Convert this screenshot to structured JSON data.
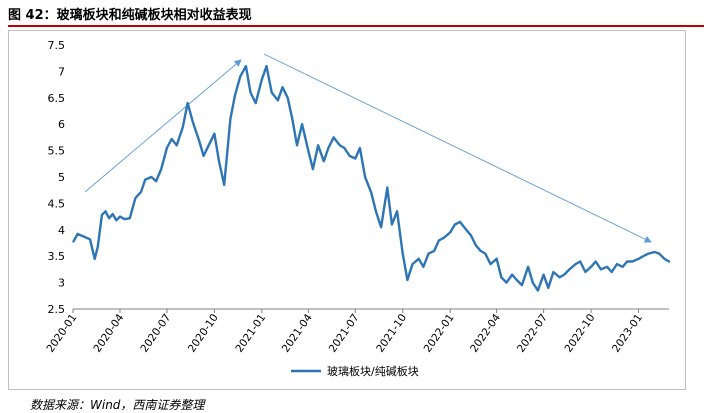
{
  "figure": {
    "title": "图 42：玻璃板块和纯碱板块相对收益表现",
    "source": "数据来源：Wind，西南证券整理"
  },
  "chart_data": {
    "type": "line",
    "title": "",
    "xlabel": "",
    "ylabel": "",
    "ylim": [
      2.5,
      7.5
    ],
    "yticks": [
      "2.5",
      "3",
      "3.5",
      "4",
      "4.5",
      "5",
      "5.5",
      "6",
      "6.5",
      "7",
      "7.5"
    ],
    "xticks": [
      "2020-01",
      "2020-04",
      "2020-07",
      "2020-10",
      "2021-01",
      "2021-04",
      "2021-07",
      "2021-10",
      "2022-01",
      "2022-04",
      "2022-07",
      "2022-10",
      "2023-01"
    ],
    "x_range": [
      "2020-01",
      "2023-03"
    ],
    "grid": false,
    "legend": "bottom",
    "color": "#2e75b6",
    "series": [
      {
        "name": "玻璃板块/纯碱板块",
        "x": [
          "2020-01-02",
          "2020-01-10",
          "2020-01-20",
          "2020-02-03",
          "2020-02-12",
          "2020-02-18",
          "2020-02-26",
          "2020-03-04",
          "2020-03-11",
          "2020-03-18",
          "2020-03-25",
          "2020-04-01",
          "2020-04-10",
          "2020-04-20",
          "2020-05-01",
          "2020-05-12",
          "2020-05-20",
          "2020-06-01",
          "2020-06-10",
          "2020-06-20",
          "2020-07-01",
          "2020-07-10",
          "2020-07-20",
          "2020-08-01",
          "2020-08-10",
          "2020-08-20",
          "2020-09-01",
          "2020-09-10",
          "2020-09-20",
          "2020-10-01",
          "2020-10-10",
          "2020-10-20",
          "2020-11-01",
          "2020-11-10",
          "2020-11-20",
          "2020-12-01",
          "2020-12-10",
          "2020-12-20",
          "2021-01-01",
          "2021-01-10",
          "2021-01-20",
          "2021-02-01",
          "2021-02-10",
          "2021-02-20",
          "2021-03-01",
          "2021-03-10",
          "2021-03-20",
          "2021-04-01",
          "2021-04-10",
          "2021-04-20",
          "2021-05-01",
          "2021-05-10",
          "2021-05-20",
          "2021-06-01",
          "2021-06-10",
          "2021-06-20",
          "2021-07-01",
          "2021-07-10",
          "2021-07-20",
          "2021-08-01",
          "2021-08-10",
          "2021-08-20",
          "2021-09-01",
          "2021-09-10",
          "2021-09-20",
          "2021-10-01",
          "2021-10-10",
          "2021-10-20",
          "2021-11-01",
          "2021-11-10",
          "2021-11-20",
          "2021-12-01",
          "2021-12-10",
          "2021-12-20",
          "2022-01-01",
          "2022-01-10",
          "2022-01-20",
          "2022-02-01",
          "2022-02-10",
          "2022-02-20",
          "2022-03-01",
          "2022-03-10",
          "2022-03-20",
          "2022-04-01",
          "2022-04-10",
          "2022-04-20",
          "2022-05-01",
          "2022-05-10",
          "2022-05-20",
          "2022-06-01",
          "2022-06-10",
          "2022-06-20",
          "2022-07-01",
          "2022-07-10",
          "2022-07-20",
          "2022-08-01",
          "2022-08-10",
          "2022-08-20",
          "2022-09-01",
          "2022-09-10",
          "2022-09-20",
          "2022-10-01",
          "2022-10-10",
          "2022-10-20",
          "2022-11-01",
          "2022-11-10",
          "2022-11-20",
          "2022-12-01",
          "2022-12-10",
          "2022-12-20",
          "2023-01-01",
          "2023-01-10",
          "2023-01-20",
          "2023-02-01",
          "2023-02-10",
          "2023-02-20",
          "2023-03-01"
        ],
        "values": [
          3.78,
          3.92,
          3.88,
          3.82,
          3.45,
          3.68,
          4.28,
          4.35,
          4.22,
          4.3,
          4.18,
          4.25,
          4.2,
          4.22,
          4.6,
          4.72,
          4.95,
          5.0,
          4.92,
          5.15,
          5.55,
          5.72,
          5.6,
          5.95,
          6.4,
          6.05,
          5.7,
          5.4,
          5.6,
          5.82,
          5.3,
          4.85,
          6.1,
          6.55,
          6.9,
          7.1,
          6.6,
          6.4,
          6.85,
          7.1,
          6.6,
          6.45,
          6.7,
          6.5,
          6.1,
          5.6,
          6.0,
          5.5,
          5.15,
          5.6,
          5.3,
          5.55,
          5.75,
          5.6,
          5.55,
          5.4,
          5.35,
          5.55,
          5.0,
          4.7,
          4.35,
          4.05,
          4.8,
          4.1,
          4.35,
          3.55,
          3.05,
          3.35,
          3.45,
          3.3,
          3.55,
          3.6,
          3.8,
          3.85,
          3.95,
          4.1,
          4.15,
          4.0,
          3.9,
          3.7,
          3.6,
          3.55,
          3.35,
          3.45,
          3.1,
          3.0,
          3.15,
          3.05,
          2.95,
          3.3,
          3.0,
          2.85,
          3.15,
          2.9,
          3.2,
          3.1,
          3.15,
          3.25,
          3.35,
          3.4,
          3.2,
          3.3,
          3.4,
          3.25,
          3.3,
          3.2,
          3.35,
          3.3,
          3.4,
          3.4,
          3.45,
          3.5,
          3.55,
          3.58,
          3.55,
          3.45,
          3.4
        ]
      }
    ]
  }
}
